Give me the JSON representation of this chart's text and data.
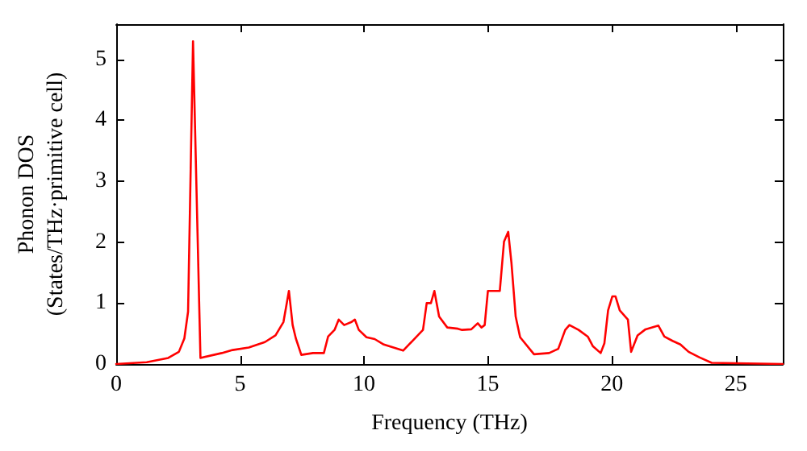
{
  "chart_data": {
    "type": "line",
    "xlabel": "Frequency (THz)",
    "ylabel": "Phonon DOS\n(States/THz·primitive cell)",
    "xlim": [
      0,
      26.9
    ],
    "ylim": [
      0,
      5.58
    ],
    "xticks": [
      0,
      5,
      10,
      15,
      20,
      25
    ],
    "yticks": [
      0,
      1,
      2,
      3,
      4,
      5
    ],
    "grid": false,
    "marker": "none",
    "line_style": "solid",
    "series": [
      {
        "color": "#ff0000",
        "x": [
          0,
          1.23,
          2.1,
          2.53,
          2.75,
          2.9,
          3.1,
          3.4,
          4.26,
          4.7,
          5.35,
          6.0,
          6.43,
          6.75,
          6.97,
          7.12,
          7.25,
          7.47,
          7.94,
          8.38,
          8.55,
          8.81,
          8.98,
          9.2,
          9.5,
          9.63,
          9.79,
          10.1,
          10.43,
          10.8,
          11.58,
          12.38,
          12.53,
          12.7,
          12.84,
          13.03,
          13.36,
          13.79,
          13.96,
          14.33,
          14.59,
          14.74,
          14.87,
          15.0,
          15.48,
          15.65,
          15.82,
          15.95,
          16.12,
          16.3,
          16.86,
          17.47,
          17.84,
          18.12,
          18.29,
          18.66,
          19.03,
          19.24,
          19.55,
          19.7,
          19.85,
          20.02,
          20.15,
          20.32,
          20.65,
          20.78,
          21.04,
          21.36,
          21.88,
          22.12,
          22.45,
          22.77,
          23.1,
          23.53,
          24.03,
          26.9
        ],
        "values": [
          0,
          0.03,
          0.1,
          0.2,
          0.42,
          0.86,
          5.3,
          0.1,
          0.18,
          0.23,
          0.27,
          0.36,
          0.47,
          0.69,
          1.2,
          0.64,
          0.42,
          0.15,
          0.18,
          0.18,
          0.45,
          0.56,
          0.73,
          0.64,
          0.69,
          0.73,
          0.56,
          0.44,
          0.41,
          0.32,
          0.22,
          0.56,
          1.0,
          1.0,
          1.2,
          0.78,
          0.6,
          0.58,
          0.56,
          0.57,
          0.67,
          0.6,
          0.64,
          1.2,
          1.2,
          2.01,
          2.17,
          1.66,
          0.78,
          0.44,
          0.16,
          0.18,
          0.25,
          0.56,
          0.64,
          0.56,
          0.45,
          0.29,
          0.18,
          0.34,
          0.88,
          1.11,
          1.11,
          0.88,
          0.73,
          0.2,
          0.47,
          0.57,
          0.63,
          0.45,
          0.38,
          0.32,
          0.2,
          0.11,
          0.02,
          0
        ]
      }
    ]
  }
}
